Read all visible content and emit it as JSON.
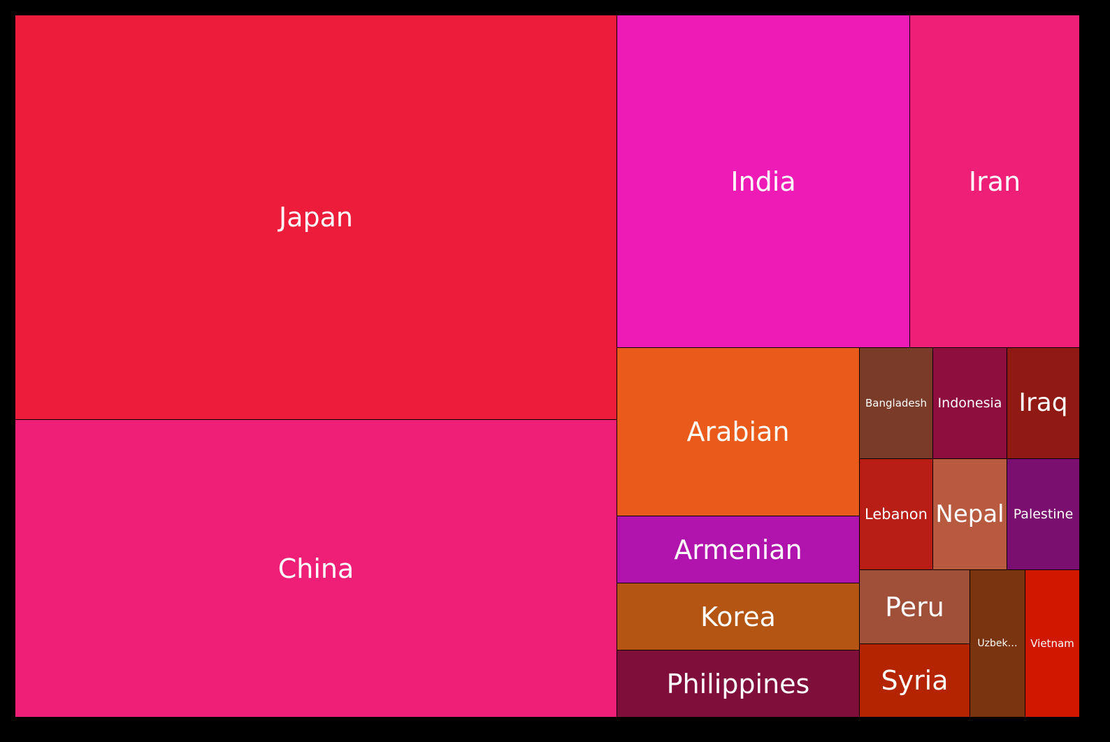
{
  "chart_data": {
    "type": "treemap",
    "title": "",
    "tiles": [
      {
        "label": "Japan",
        "color": "#ec1c3a"
      },
      {
        "label": "China",
        "color": "#ef1f78"
      },
      {
        "label": "India",
        "color": "#ef1bb6"
      },
      {
        "label": "Iran",
        "color": "#ef1f78"
      },
      {
        "label": "Arabian",
        "color": "#ea5a1a"
      },
      {
        "label": "Armenian",
        "color": "#b114ad"
      },
      {
        "label": "Korea",
        "color": "#b45514"
      },
      {
        "label": "Philippines",
        "color": "#7f0e3a"
      },
      {
        "label": "Bangladesh",
        "color": "#7a3b28"
      },
      {
        "label": "Indonesia",
        "color": "#8e0f3e"
      },
      {
        "label": "Iraq",
        "color": "#901a13"
      },
      {
        "label": "Lebanon",
        "color": "#b81e16"
      },
      {
        "label": "Nepal",
        "color": "#b85a3f"
      },
      {
        "label": "Palestine",
        "color": "#7a0f70"
      },
      {
        "label": "Peru",
        "color": "#a04f38"
      },
      {
        "label": "Syria",
        "color": "#b52400"
      },
      {
        "label": "Uzbek…",
        "color": "#7a3510"
      },
      {
        "label": "Vietnam",
        "color": "#d01800"
      }
    ]
  }
}
